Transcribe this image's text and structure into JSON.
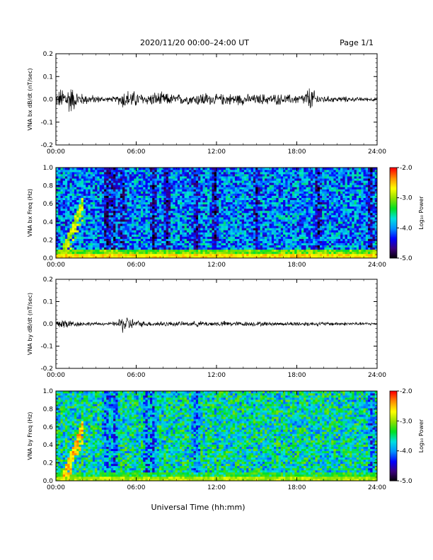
{
  "header": {
    "title": "2020/11/20  00:00–24:00 UT",
    "page": "Page 1/1"
  },
  "xaxis_label": "Universal Time (hh:mm)",
  "colorbar": {
    "label": "Log₁₀ Power",
    "range": [
      -5.0,
      -2.0
    ],
    "tick_labels": [
      "-2.0",
      "-3.0",
      "-4.0",
      "-5.0"
    ],
    "colormap": [
      "#000000",
      "#3a007a",
      "#0000ff",
      "#0090ff",
      "#00e0e0",
      "#00e020",
      "#90e000",
      "#ffff00",
      "#ff9000",
      "#ff0000"
    ]
  },
  "chart_data": [
    {
      "type": "line",
      "ylabel": "VNA bx dB/dt (nT/sec)",
      "xlim": [
        0,
        24
      ],
      "ylim": [
        -0.2,
        0.2
      ],
      "x_ticks": [
        "00:00",
        "06:00",
        "12:00",
        "18:00",
        "24:00"
      ],
      "y_ticks": [
        "-0.2",
        "-0.1",
        "0.0",
        "0.1",
        "0.2"
      ],
      "series": [
        {
          "x": [
            0,
            0.5,
            1,
            1.5,
            2,
            2.5,
            3,
            3.5,
            4,
            4.5,
            5,
            5.5,
            6,
            6.5,
            7,
            7.5,
            8,
            8.5,
            9,
            9.5,
            10,
            10.5,
            11,
            11.5,
            12,
            12.5,
            13,
            13.5,
            14,
            14.5,
            15,
            15.5,
            16,
            16.5,
            17,
            17.5,
            18,
            18.5,
            19,
            19.5,
            20,
            20.5,
            21,
            21.5,
            22,
            22.5,
            23,
            23.5,
            24
          ],
          "envelope": [
            0.035,
            0.065,
            0.08,
            0.045,
            0.03,
            0.025,
            0.02,
            0.015,
            0.012,
            0.015,
            0.05,
            0.05,
            0.04,
            0.03,
            0.03,
            0.04,
            0.035,
            0.03,
            0.025,
            0.03,
            0.025,
            0.03,
            0.04,
            0.03,
            0.025,
            0.03,
            0.03,
            0.03,
            0.03,
            0.025,
            0.025,
            0.03,
            0.025,
            0.03,
            0.025,
            0.025,
            0.025,
            0.03,
            0.07,
            0.03,
            0.02,
            0.015,
            0.015,
            0.015,
            0.012,
            0.01,
            0.01,
            0.01,
            0.01
          ]
        }
      ]
    },
    {
      "type": "heatmap",
      "ylabel": "VNA bx Freq (Hz)",
      "xlim": [
        0,
        24
      ],
      "ylim": [
        0,
        1.0
      ],
      "x_ticks": [
        "00:00",
        "06:00",
        "12:00",
        "18:00",
        "24:00"
      ],
      "y_ticks": [
        "0.0",
        "0.2",
        "0.4",
        "0.6",
        "0.8",
        "1.0"
      ],
      "zlim": [
        -5.0,
        -2.0
      ],
      "features": {
        "background": -4.0,
        "low_band": -2.6,
        "chirp": {
          "start": [
            0.5,
            0.05
          ],
          "end": [
            2.0,
            0.6
          ],
          "value": -2.9
        },
        "dark_bands_hours": [
          3.8,
          4.3,
          5.0,
          7.3,
          8.3,
          10.5,
          11.9,
          15.0,
          19.6,
          23.5
        ]
      }
    },
    {
      "type": "line",
      "ylabel": "VNA by dB/dt (nT/sec)",
      "xlim": [
        0,
        24
      ],
      "ylim": [
        -0.2,
        0.2
      ],
      "x_ticks": [
        "00:00",
        "06:00",
        "12:00",
        "18:00",
        "24:00"
      ],
      "y_ticks": [
        "-0.2",
        "-0.1",
        "0.0",
        "0.1",
        "0.2"
      ],
      "series": [
        {
          "x": [
            0,
            0.5,
            1,
            1.5,
            2,
            2.5,
            3,
            3.5,
            4,
            4.5,
            5,
            5.5,
            6,
            6.5,
            7,
            7.5,
            8,
            8.5,
            9,
            9.5,
            10,
            10.5,
            11,
            11.5,
            12,
            12.5,
            13,
            13.5,
            14,
            14.5,
            15,
            15.5,
            16,
            16.5,
            17,
            17.5,
            18,
            18.5,
            19,
            19.5,
            20,
            20.5,
            21,
            21.5,
            22,
            22.5,
            23,
            23.5,
            24
          ],
          "envelope": [
            0.02,
            0.035,
            0.02,
            0.015,
            0.012,
            0.01,
            0.008,
            0.008,
            0.008,
            0.012,
            0.05,
            0.035,
            0.02,
            0.015,
            0.012,
            0.015,
            0.015,
            0.012,
            0.012,
            0.012,
            0.012,
            0.015,
            0.015,
            0.012,
            0.012,
            0.015,
            0.015,
            0.012,
            0.012,
            0.012,
            0.012,
            0.012,
            0.01,
            0.01,
            0.01,
            0.01,
            0.012,
            0.012,
            0.012,
            0.01,
            0.01,
            0.01,
            0.01,
            0.01,
            0.01,
            0.008,
            0.008,
            0.008,
            0.008
          ]
        }
      ]
    },
    {
      "type": "heatmap",
      "ylabel": "VNA by Freq (Hz)",
      "xlim": [
        0,
        24
      ],
      "ylim": [
        0,
        1.0
      ],
      "x_ticks": [
        "00:00",
        "06:00",
        "12:00",
        "18:00",
        "24:00"
      ],
      "y_ticks": [
        "0.0",
        "0.2",
        "0.4",
        "0.6",
        "0.8",
        "1.0"
      ],
      "zlim": [
        -5.0,
        -2.0
      ],
      "features": {
        "background": -3.6,
        "low_band": -2.9,
        "chirp": {
          "start": [
            0.6,
            0.05
          ],
          "end": [
            2.0,
            0.6
          ],
          "value": -2.5
        },
        "dark_bands_hours": [
          3.8,
          4.4,
          6.8,
          7.3,
          10.5,
          23.6
        ]
      }
    }
  ]
}
